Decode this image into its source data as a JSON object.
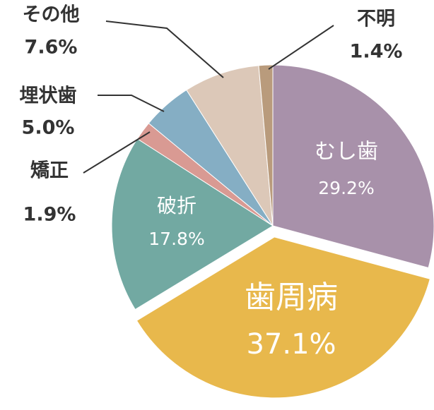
{
  "chart_data": {
    "type": "pie",
    "categories": [
      "むし歯",
      "歯周病",
      "破折",
      "矯正",
      "埋状歯",
      "その他",
      "不明"
    ],
    "values": [
      29.2,
      37.1,
      17.8,
      1.9,
      5.0,
      7.6,
      1.4
    ],
    "value_labels": [
      "29.2%",
      "37.1%",
      "17.8%",
      "1.9%",
      "5.0%",
      "7.6%",
      "1.4%"
    ],
    "colors": [
      "#a891aa",
      "#e8b84c",
      "#72a9a2",
      "#d99a93",
      "#85aec4",
      "#dcc8b8",
      "#b99b7c"
    ]
  }
}
